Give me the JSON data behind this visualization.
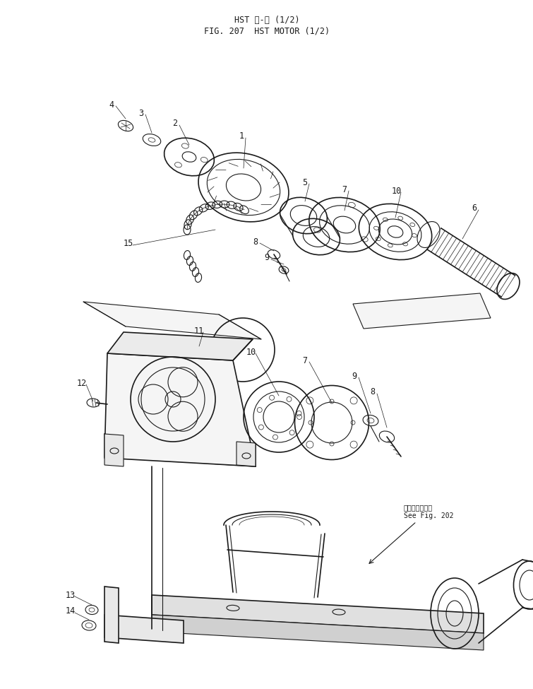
{
  "title_line1": "HST モ-タ (1/2)",
  "title_line2": "FIG. 207  HST MOTOR (1/2)",
  "bg_color": "#ffffff",
  "line_color": "#1a1a1a",
  "fig_width": 7.55,
  "fig_height": 9.75,
  "dpi": 100,
  "see_fig_label_jp": "第２０２図参照",
  "see_fig_label_en": "See Fig. 202"
}
